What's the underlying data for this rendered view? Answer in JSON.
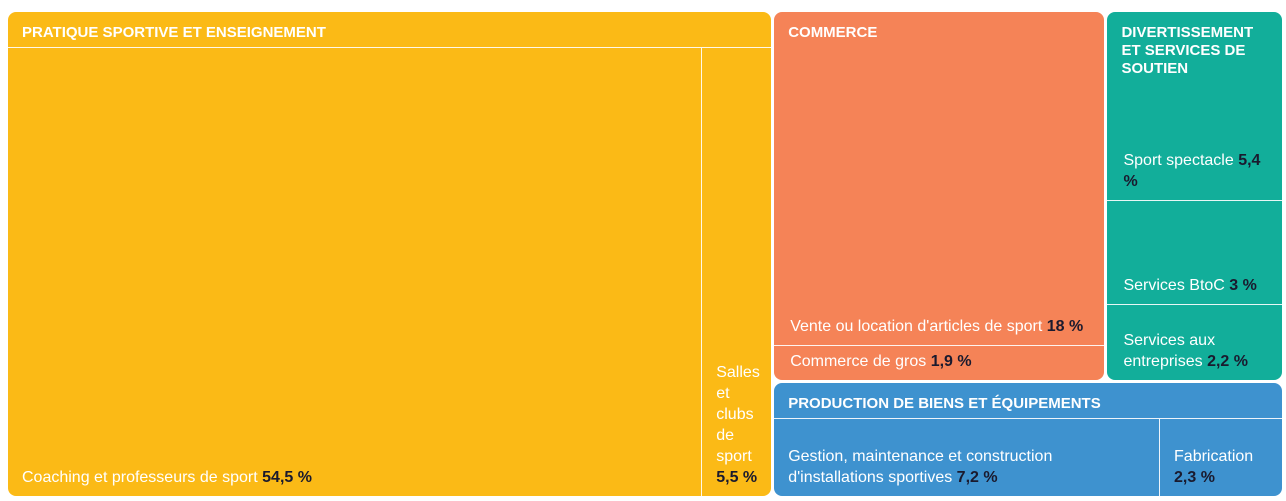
{
  "chart_data": {
    "type": "treemap",
    "groups": [
      {
        "name": "PRATIQUE SPORTIVE ET ENSEIGNEMENT",
        "color": "#fbba16",
        "items": [
          {
            "name": "Coaching et professeurs de sport",
            "value": 54.5,
            "value_label": "54,5 %"
          },
          {
            "name": "Salles et clubs  de sport",
            "value": 5.5,
            "value_label": "5,5 %"
          }
        ]
      },
      {
        "name": "COMMERCE",
        "color": "#f58357",
        "items": [
          {
            "name": "Vente ou location d'articles de sport",
            "value": 18,
            "value_label": "18 %"
          },
          {
            "name": "Commerce de gros",
            "value": 1.9,
            "value_label": "1,9 %"
          }
        ]
      },
      {
        "name": "DIVERTISSEMENT ET SERVICES DE SOUTIEN",
        "color": "#12ae9a",
        "items": [
          {
            "name": "Sport spectacle",
            "value": 5.4,
            "value_label": "5,4 %"
          },
          {
            "name": "Services BtoC",
            "value": 3,
            "value_label": "3 %"
          },
          {
            "name": "Services aux entreprises",
            "value": 2.2,
            "value_label": "2,2 %"
          }
        ]
      },
      {
        "name": "PRODUCTION DE BIENS ET ÉQUIPEMENTS",
        "color": "#3e92cf",
        "items": [
          {
            "name": "Gestion, maintenance et construction d'installations sportives",
            "value": 7.2,
            "value_label": "7,2 %"
          },
          {
            "name": "Fabrication",
            "value": 2.3,
            "value_label": "2,3 %"
          }
        ]
      }
    ]
  }
}
